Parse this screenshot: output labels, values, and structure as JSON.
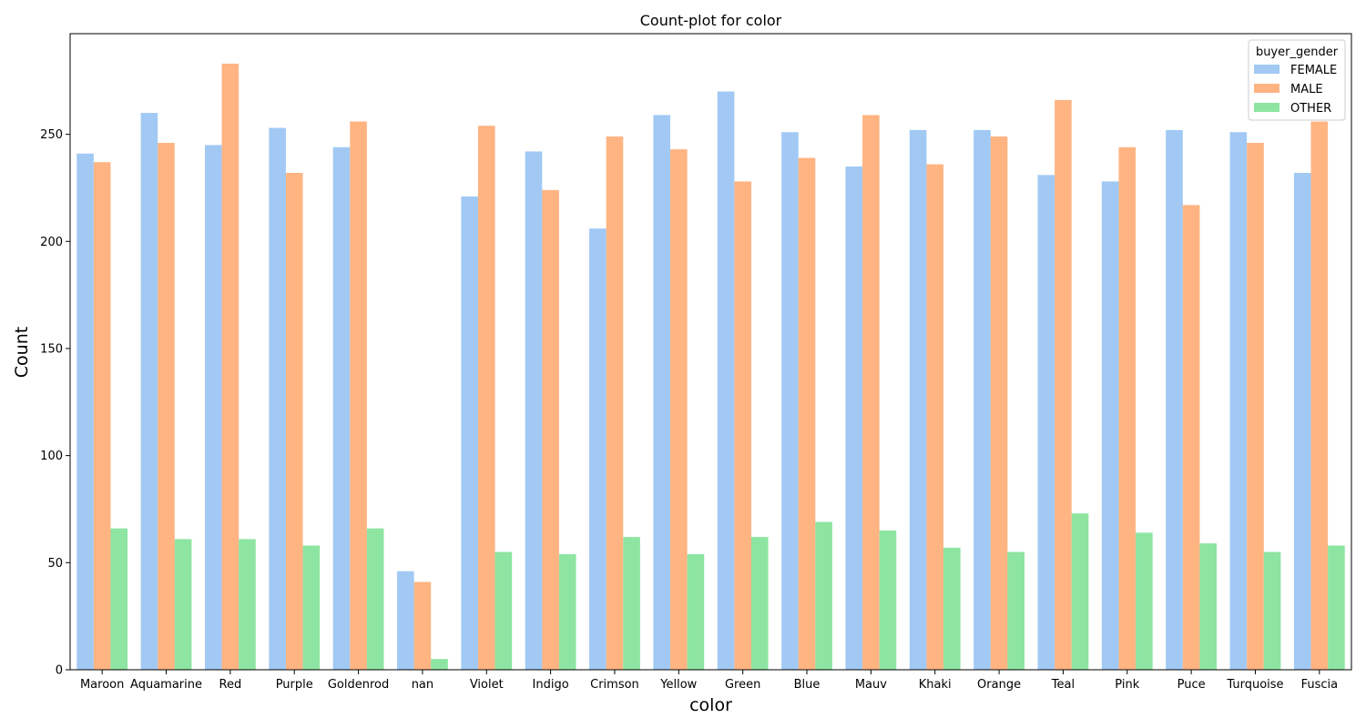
{
  "chart_data": {
    "type": "bar",
    "title": "Count-plot for color",
    "xlabel": "color",
    "ylabel": "Count",
    "categories": [
      "Maroon",
      "Aquamarine",
      "Red",
      "Purple",
      "Goldenrod",
      "nan",
      "Violet",
      "Indigo",
      "Crimson",
      "Yellow",
      "Green",
      "Blue",
      "Mauv",
      "Khaki",
      "Orange",
      "Teal",
      "Pink",
      "Puce",
      "Turquoise",
      "Fuscia"
    ],
    "series": [
      {
        "name": "FEMALE",
        "color": "#a1c9f4",
        "values": [
          241,
          260,
          245,
          253,
          244,
          46,
          221,
          242,
          206,
          259,
          270,
          251,
          235,
          252,
          252,
          231,
          228,
          252,
          251,
          232
        ]
      },
      {
        "name": "MALE",
        "color": "#ffb482",
        "values": [
          237,
          246,
          283,
          232,
          256,
          41,
          254,
          224,
          249,
          243,
          228,
          239,
          259,
          236,
          249,
          266,
          244,
          217,
          246,
          256
        ]
      },
      {
        "name": "OTHER",
        "color": "#8de5a1",
        "values": [
          66,
          61,
          61,
          58,
          66,
          5,
          55,
          54,
          62,
          54,
          62,
          69,
          65,
          57,
          55,
          73,
          64,
          59,
          55,
          58
        ]
      }
    ],
    "ylim": [
      0,
      297
    ],
    "yticks": [
      0,
      50,
      100,
      150,
      200,
      250
    ],
    "legend": {
      "title": "buyer_gender",
      "placement": "top-right"
    },
    "grid": false
  }
}
